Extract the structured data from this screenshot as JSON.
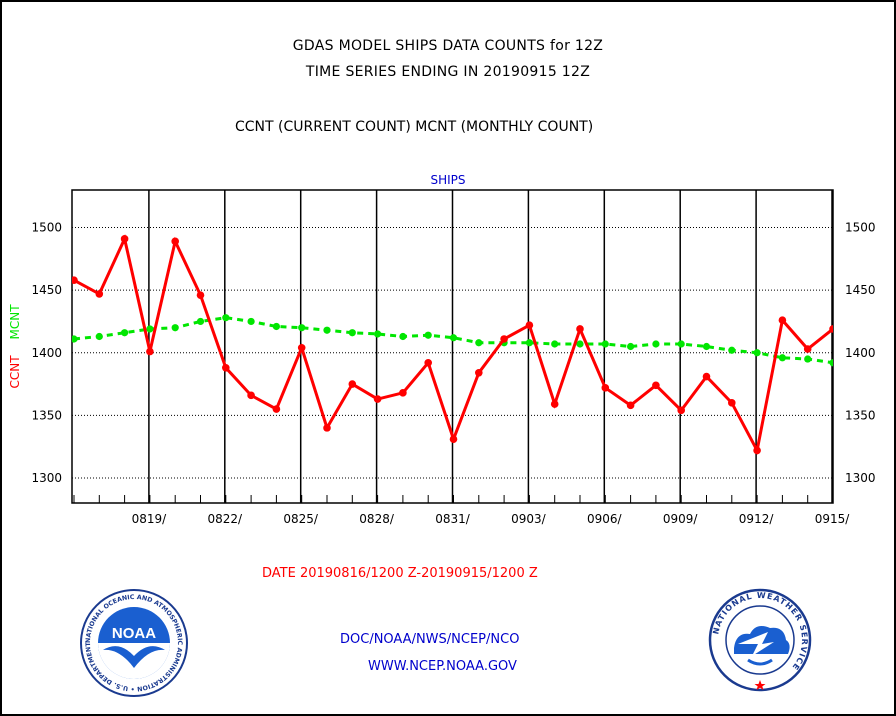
{
  "titles": {
    "line1": "GDAS MODEL SHIPS DATA COUNTS for 12Z",
    "line2": "TIME SERIES ENDING IN 20190915 12Z",
    "line3": "CCNT (CURRENT COUNT) MCNT (MONTHLY COUNT)"
  },
  "footer": {
    "date_range": "DATE 20190816/1200 Z-20190915/1200 Z",
    "org": "DOC/NOAA/NWS/NCEP/NCO",
    "url": "WWW.NCEP.NOAA.GOV"
  },
  "logos": {
    "left": "NOAA",
    "left_ring": "NATIONAL OCEANIC AND ATMOSPHERIC ADMINISTRATION • U.S. DEPARTMENT OF COMMERCE •",
    "right_ring": "NATIONAL WEATHER SERVICE"
  },
  "colors": {
    "ccnt": "#ff0000",
    "mcnt": "#00e600",
    "title_blue": "#0000cc",
    "grid": "#000000"
  },
  "chart_data": {
    "type": "line",
    "title": "SHIPS",
    "ylabel_ccnt": "CCNT",
    "ylabel_mcnt": "MCNT",
    "ylim": [
      1280,
      1530
    ],
    "yticks": [
      1300,
      1350,
      1400,
      1450,
      1500
    ],
    "xticks": [
      "0819/",
      "0822/",
      "0825/",
      "0828/",
      "0831/",
      "0903/",
      "0906/",
      "0909/",
      "0912/",
      "0915/"
    ],
    "x_start": "08/16",
    "grid": true,
    "series": [
      {
        "name": "CCNT",
        "color": "#ff0000",
        "values": [
          1458,
          1447,
          1491,
          1401,
          1489,
          1446,
          1388,
          1366,
          1355,
          1404,
          1340,
          1375,
          1363,
          1368,
          1392,
          1331,
          1384,
          1411,
          1422,
          1359,
          1419,
          1372,
          1358,
          1374,
          1354,
          1381,
          1360,
          1322,
          1426,
          1403,
          1419
        ]
      },
      {
        "name": "MCNT",
        "color": "#00e600",
        "values": [
          1411,
          1413,
          1416,
          1419,
          1420,
          1425,
          1428,
          1425,
          1421,
          1420,
          1418,
          1416,
          1415,
          1413,
          1414,
          1412,
          1408,
          1408,
          1408,
          1407,
          1407,
          1407,
          1405,
          1407,
          1407,
          1405,
          1402,
          1400,
          1396,
          1395,
          1392
        ]
      }
    ]
  }
}
